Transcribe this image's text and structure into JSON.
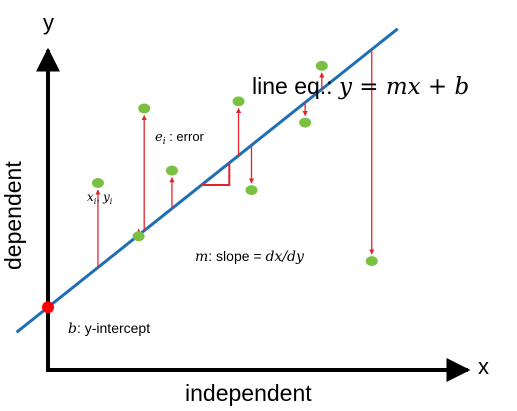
{
  "axes": {
    "x_letter": "x",
    "y_letter": "y",
    "x_label": "independent",
    "y_label": "dependent"
  },
  "line_equation": {
    "prefix": "line eq.: ",
    "math": "y = mx + b"
  },
  "annotations": {
    "point_label": "x",
    "point_label_i": "i",
    "point_label_y": "y",
    "point_label_yi": "i",
    "error_sym": "e",
    "error_sub": "i",
    "error_text": " : error",
    "slope_sym": "m",
    "slope_text": ": slope = ",
    "slope_math": "dx/dy",
    "intercept_sym": "b",
    "intercept_text": ": y-intercept"
  },
  "colors": {
    "axis": "#000000",
    "regression_line": "#1f6fb5",
    "data_point": "#7ac143",
    "error_arrow": "#e3242b",
    "intercept_point": "#ff0000",
    "slope_marker": "#e3242b"
  },
  "chart_data": {
    "type": "scatter",
    "regression": {
      "slope": 0.83,
      "intercept": 0.5
    },
    "points": [
      {
        "x": 1.35,
        "y": 4.0
      },
      {
        "x": 2.6,
        "y": 6.1
      },
      {
        "x": 2.45,
        "y": 2.5
      },
      {
        "x": 3.35,
        "y": 4.35
      },
      {
        "x": 5.15,
        "y": 6.3
      },
      {
        "x": 5.5,
        "y": 3.8
      },
      {
        "x": 6.95,
        "y": 5.7
      },
      {
        "x": 7.4,
        "y": 7.3
      },
      {
        "x": 8.75,
        "y": 1.8
      }
    ],
    "intercept_point": {
      "x": 0,
      "y": 0.5
    },
    "xlim": [
      0,
      10
    ],
    "ylim": [
      0,
      10
    ]
  }
}
